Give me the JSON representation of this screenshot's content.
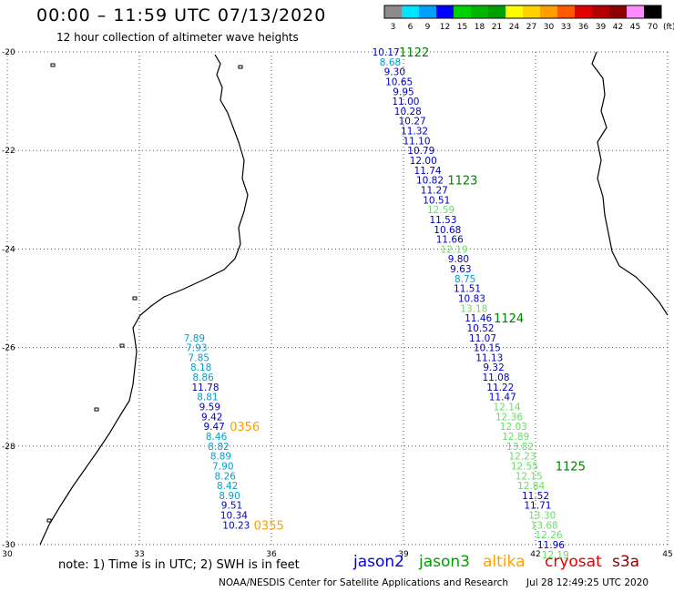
{
  "header": {
    "title": "00:00 – 11:59 UTC 07/13/2020",
    "subtitle": "12 hour collection of altimeter wave heights"
  },
  "color_scale": {
    "labels": [
      "3",
      "6",
      "9",
      "12",
      "15",
      "18",
      "21",
      "24",
      "27",
      "30",
      "33",
      "36",
      "39",
      "42",
      "45",
      "70"
    ],
    "colors": [
      "#8c8c8c",
      "#00e5ff",
      "#00a0ff",
      "#0000ff",
      "#00d200",
      "#00b400",
      "#00a000",
      "#ffff00",
      "#ffd200",
      "#ffa000",
      "#ff5a00",
      "#e10000",
      "#b40000",
      "#8c0000",
      "#ff8cff",
      "#000000"
    ],
    "unit": "(ft)"
  },
  "axes": {
    "lon_ticks": [
      "30",
      "33",
      "36",
      "39",
      "42",
      "45"
    ],
    "lat_ticks": [
      "-20",
      "-22",
      "-24",
      "-26",
      "-28",
      "-30"
    ],
    "lon_range": [
      30,
      45
    ],
    "lat_range": [
      -30,
      -20
    ]
  },
  "tracks": [
    {
      "name": "track_1122",
      "points": [
        {
          "lon": 38.6,
          "lat": -20.0,
          "v": "10.17",
          "c": "#0000c0"
        },
        {
          "lon": 38.7,
          "lat": -20.2,
          "v": "8.68",
          "c": "#00a0d0"
        },
        {
          "lon": 38.8,
          "lat": -20.4,
          "v": "9.30",
          "c": "#0000c0"
        },
        {
          "lon": 38.9,
          "lat": -20.6,
          "v": "10.65",
          "c": "#0000c0"
        },
        {
          "lon": 39.0,
          "lat": -20.8,
          "v": "9.95",
          "c": "#0000c0"
        },
        {
          "lon": 39.05,
          "lat": -21.0,
          "v": "11.00",
          "c": "#0000c0"
        },
        {
          "lon": 39.1,
          "lat": -21.2,
          "v": "10.28",
          "c": "#0000c0"
        },
        {
          "lon": 39.2,
          "lat": -21.4,
          "v": "10.27",
          "c": "#0000c0"
        },
        {
          "lon": 39.25,
          "lat": -21.6,
          "v": "11.32",
          "c": "#0000c0"
        },
        {
          "lon": 39.3,
          "lat": -21.8,
          "v": "11.10",
          "c": "#0000c0"
        },
        {
          "lon": 39.4,
          "lat": -22.0,
          "v": "10.79",
          "c": "#0000c0"
        },
        {
          "lon": 39.45,
          "lat": -22.2,
          "v": "12.00",
          "c": "#0000c0"
        },
        {
          "lon": 39.55,
          "lat": -22.4,
          "v": "11.74",
          "c": "#0000c0"
        },
        {
          "lon": 39.6,
          "lat": -22.6,
          "v": "10.82",
          "c": "#0000c0"
        },
        {
          "lon": 39.7,
          "lat": -22.8,
          "v": "11.27",
          "c": "#0000c0"
        },
        {
          "lon": 39.75,
          "lat": -23.0,
          "v": "10.51",
          "c": "#0000c0"
        },
        {
          "lon": 39.85,
          "lat": -23.2,
          "v": "12.59",
          "c": "#66dd66"
        },
        {
          "lon": 39.9,
          "lat": -23.4,
          "v": "11.53",
          "c": "#0000c0"
        },
        {
          "lon": 40.0,
          "lat": -23.6,
          "v": "10.68",
          "c": "#0000c0"
        },
        {
          "lon": 40.05,
          "lat": -23.8,
          "v": "11.66",
          "c": "#0000c0"
        },
        {
          "lon": 40.15,
          "lat": -24.0,
          "v": "12.19",
          "c": "#66dd66"
        },
        {
          "lon": 40.25,
          "lat": -24.2,
          "v": "9.80",
          "c": "#0000c0"
        },
        {
          "lon": 40.3,
          "lat": -24.4,
          "v": "9.63",
          "c": "#0000c0"
        },
        {
          "lon": 40.4,
          "lat": -24.6,
          "v": "8.75",
          "c": "#00a0d0"
        },
        {
          "lon": 40.45,
          "lat": -24.8,
          "v": "11.51",
          "c": "#0000c0"
        },
        {
          "lon": 40.55,
          "lat": -25.0,
          "v": "10.83",
          "c": "#0000c0"
        },
        {
          "lon": 40.6,
          "lat": -25.2,
          "v": "13.18",
          "c": "#66dd66"
        },
        {
          "lon": 40.7,
          "lat": -25.4,
          "v": "11.46",
          "c": "#0000c0"
        },
        {
          "lon": 40.75,
          "lat": -25.6,
          "v": "10.52",
          "c": "#0000c0"
        },
        {
          "lon": 40.8,
          "lat": -25.8,
          "v": "11.07",
          "c": "#0000c0"
        },
        {
          "lon": 40.9,
          "lat": -26.0,
          "v": "10.15",
          "c": "#0000c0"
        },
        {
          "lon": 40.95,
          "lat": -26.2,
          "v": "11.13",
          "c": "#0000c0"
        },
        {
          "lon": 41.05,
          "lat": -26.4,
          "v": "9.32",
          "c": "#0000c0"
        },
        {
          "lon": 41.1,
          "lat": -26.6,
          "v": "11.08",
          "c": "#0000c0"
        },
        {
          "lon": 41.2,
          "lat": -26.8,
          "v": "11.22",
          "c": "#0000c0"
        },
        {
          "lon": 41.25,
          "lat": -27.0,
          "v": "11.47",
          "c": "#0000c0"
        },
        {
          "lon": 41.35,
          "lat": -27.2,
          "v": "12.14",
          "c": "#66dd66"
        },
        {
          "lon": 41.4,
          "lat": -27.4,
          "v": "12.36",
          "c": "#66dd66"
        },
        {
          "lon": 41.5,
          "lat": -27.6,
          "v": "12.03",
          "c": "#66dd66"
        },
        {
          "lon": 41.55,
          "lat": -27.8,
          "v": "12.89",
          "c": "#66dd66"
        },
        {
          "lon": 41.65,
          "lat": -28.0,
          "v": "13.82",
          "c": "#66dd66"
        },
        {
          "lon": 41.7,
          "lat": -28.2,
          "v": "12.23",
          "c": "#66dd66"
        },
        {
          "lon": 41.75,
          "lat": -28.4,
          "v": "12.55",
          "c": "#66dd66"
        },
        {
          "lon": 41.85,
          "lat": -28.6,
          "v": "12.15",
          "c": "#66dd66"
        },
        {
          "lon": 41.9,
          "lat": -28.8,
          "v": "12.84",
          "c": "#66dd66"
        },
        {
          "lon": 42.0,
          "lat": -29.0,
          "v": "11.52",
          "c": "#0000c0"
        },
        {
          "lon": 42.05,
          "lat": -29.2,
          "v": "11.71",
          "c": "#0000c0"
        },
        {
          "lon": 42.15,
          "lat": -29.4,
          "v": "13.30",
          "c": "#66dd66"
        },
        {
          "lon": 42.2,
          "lat": -29.6,
          "v": "13.68",
          "c": "#66dd66"
        },
        {
          "lon": 42.3,
          "lat": -29.8,
          "v": "12.26",
          "c": "#66dd66"
        },
        {
          "lon": 42.35,
          "lat": -30.0,
          "v": "11.96",
          "c": "#0000c0"
        },
        {
          "lon": 42.45,
          "lat": -30.2,
          "v": "12.19",
          "c": "#66dd66"
        }
      ]
    },
    {
      "name": "track_0356",
      "points": [
        {
          "lon": 34.25,
          "lat": -25.8,
          "v": "7.89",
          "c": "#00a0d0"
        },
        {
          "lon": 34.3,
          "lat": -26.0,
          "v": "7.93",
          "c": "#00a0d0"
        },
        {
          "lon": 34.35,
          "lat": -26.2,
          "v": "7.85",
          "c": "#00a0d0"
        },
        {
          "lon": 34.4,
          "lat": -26.4,
          "v": "8.18",
          "c": "#00a0d0"
        },
        {
          "lon": 34.45,
          "lat": -26.6,
          "v": "8.86",
          "c": "#00a0d0"
        },
        {
          "lon": 34.5,
          "lat": -26.8,
          "v": "11.78",
          "c": "#0000c0"
        },
        {
          "lon": 34.55,
          "lat": -27.0,
          "v": "8.81",
          "c": "#00a0d0"
        },
        {
          "lon": 34.6,
          "lat": -27.2,
          "v": "9.59",
          "c": "#0000c0"
        },
        {
          "lon": 34.65,
          "lat": -27.4,
          "v": "9.42",
          "c": "#0000c0"
        },
        {
          "lon": 34.7,
          "lat": -27.6,
          "v": "9.47",
          "c": "#0000c0"
        },
        {
          "lon": 34.75,
          "lat": -27.8,
          "v": "8.46",
          "c": "#00a0d0"
        },
        {
          "lon": 34.8,
          "lat": -28.0,
          "v": "8.82",
          "c": "#00a0d0"
        },
        {
          "lon": 34.85,
          "lat": -28.2,
          "v": "8.89",
          "c": "#00a0d0"
        },
        {
          "lon": 34.9,
          "lat": -28.4,
          "v": "7.90",
          "c": "#00a0d0"
        },
        {
          "lon": 34.95,
          "lat": -28.6,
          "v": "8.26",
          "c": "#00a0d0"
        },
        {
          "lon": 35.0,
          "lat": -28.8,
          "v": "8.42",
          "c": "#00a0d0"
        },
        {
          "lon": 35.05,
          "lat": -29.0,
          "v": "8.90",
          "c": "#00a0d0"
        },
        {
          "lon": 35.1,
          "lat": -29.2,
          "v": "9.51",
          "c": "#0000c0"
        },
        {
          "lon": 35.15,
          "lat": -29.4,
          "v": "10.34",
          "c": "#0000c0"
        },
        {
          "lon": 35.2,
          "lat": -29.6,
          "v": "10.23",
          "c": "#0000c0"
        }
      ]
    }
  ],
  "time_labels": [
    {
      "text": "1122",
      "lon": 38.9,
      "lat": -20.0,
      "c": "#008000"
    },
    {
      "text": "1123",
      "lon": 40.0,
      "lat": -22.6,
      "c": "#008000"
    },
    {
      "text": "1124",
      "lon": 41.05,
      "lat": -25.4,
      "c": "#008000"
    },
    {
      "text": "1125",
      "lon": 42.45,
      "lat": -28.4,
      "c": "#008000"
    },
    {
      "text": "0356",
      "lon": 35.05,
      "lat": -27.6,
      "c": "#ffa000"
    },
    {
      "text": "0355",
      "lon": 35.6,
      "lat": -29.6,
      "c": "#ffa000"
    }
  ],
  "note": "note:  1) Time is in UTC;  2) SWH is in feet",
  "legend": [
    {
      "name": "jason2",
      "color": "#0000e0"
    },
    {
      "name": "jason3",
      "color": "#00a000"
    },
    {
      "name": "altika",
      "color": "#ffa000"
    },
    {
      "name": "cryosat",
      "color": "#e00000"
    },
    {
      "name": "s3a",
      "color": "#8c0000"
    }
  ],
  "footer": {
    "credit": "NOAA/NESDIS Center for Satellite Applications and Research",
    "timestamp": "Jul 28 12:49:25 UTC 2020"
  }
}
